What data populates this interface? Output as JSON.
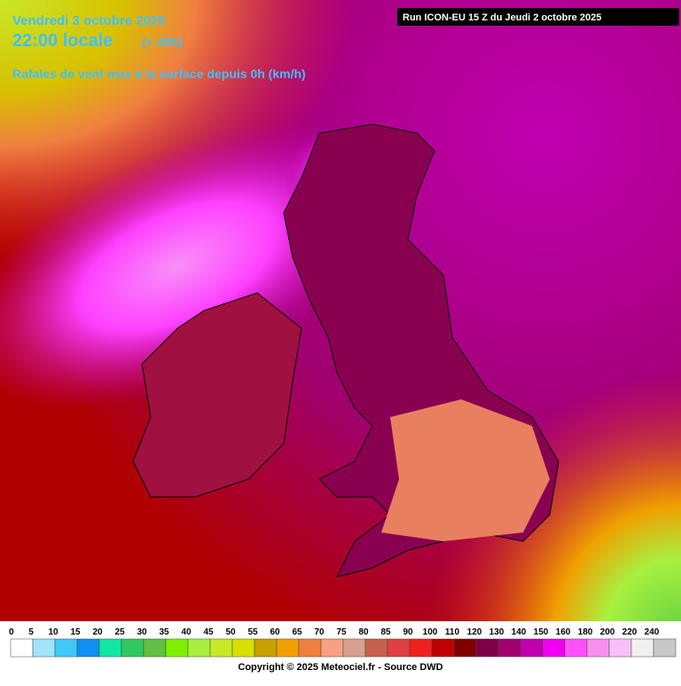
{
  "header": {
    "date": "Vendredi 3 octobre 2025",
    "time": "22:00 locale",
    "lead": "(+ 29h)",
    "subtitle": "Rafales de vent max à la surface depuis 0h (km/h)",
    "run": "Run ICON-EU 15 Z du Jeudi 2 octobre 2025"
  },
  "legend": {
    "labels": [
      0,
      5,
      10,
      15,
      20,
      25,
      30,
      35,
      40,
      45,
      50,
      55,
      60,
      65,
      70,
      75,
      80,
      85,
      90,
      100,
      110,
      120,
      130,
      140,
      150,
      160,
      180,
      200,
      220,
      240
    ],
    "colors": [
      "#ffffff",
      "#a0e4f8",
      "#40c8f8",
      "#1090f0",
      "#10e8a0",
      "#30c860",
      "#60c040",
      "#80f000",
      "#a8f040",
      "#c8e828",
      "#d8e000",
      "#c8a000",
      "#f0a000",
      "#f08040",
      "#f8a080",
      "#d8a090",
      "#c86050",
      "#e04040",
      "#f02020",
      "#c00000",
      "#800000",
      "#800048",
      "#a00070",
      "#c000b0",
      "#f000f0",
      "#ff50ff",
      "#f890f0",
      "#f8c0f8",
      "#f0f0f0",
      "#c8c8c8"
    ]
  },
  "footer": {
    "copyright": "Copyright © 2025 Meteociel.fr - Source DWD"
  }
}
